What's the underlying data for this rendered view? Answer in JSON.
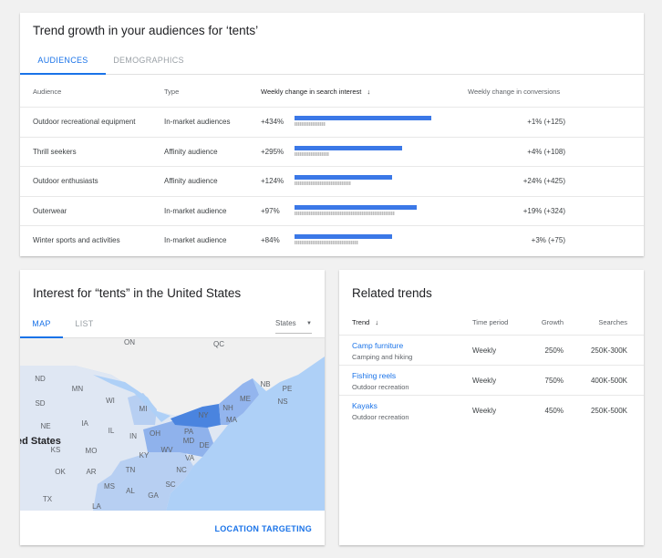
{
  "audiences_card": {
    "title": "Trend growth in your audiences for ‘tents’",
    "tabs": [
      "AUDIENCES",
      "DEMOGRAPHICS"
    ],
    "columns": [
      "Audience",
      "Type",
      "Weekly change in search interest",
      "Weekly change in conversions"
    ],
    "rows": [
      {
        "audience": "Outdoor recreational equipment",
        "type": "In-market audiences",
        "search_change": "+434%",
        "conversions": "+1% (+125)",
        "bar_pct": 94,
        "baseline_pct": 21
      },
      {
        "audience": "Thrill seekers",
        "type": "Affinity audience",
        "search_change": "+295%",
        "conversions": "+4% (+108)",
        "bar_pct": 74,
        "baseline_pct": 24
      },
      {
        "audience": "Outdoor enthusiasts",
        "type": "Affinity audience",
        "search_change": "+124%",
        "conversions": "+24% (+425)",
        "bar_pct": 67,
        "baseline_pct": 39
      },
      {
        "audience": "Outerwear",
        "type": "In-market audience",
        "search_change": "+97%",
        "conversions": "+19% (+324)",
        "bar_pct": 84,
        "baseline_pct": 69
      },
      {
        "audience": "Winter sports and activities",
        "type": "In-market audience",
        "search_change": "+84%",
        "conversions": "+3% (+75)",
        "bar_pct": 67,
        "baseline_pct": 44
      }
    ]
  },
  "interest_card": {
    "title": "Interest for “tents” in the United States",
    "tabs": [
      "MAP",
      "LIST"
    ],
    "dropdown": "States",
    "country_label": "ed States",
    "labels": [
      "ON",
      "QC",
      "ND",
      "MN",
      "SD",
      "WI",
      "MI",
      "NE",
      "IA",
      "IL",
      "IN",
      "OH",
      "PA",
      "MD",
      "NY",
      "NH",
      "ME",
      "MA",
      "NB",
      "PE",
      "NS",
      "KS",
      "MO",
      "KY",
      "WV",
      "DE",
      "VA",
      "TN",
      "NC",
      "OK",
      "AR",
      "MS",
      "AL",
      "SC",
      "GA",
      "TX",
      "LA"
    ],
    "action": "LOCATION TARGETING"
  },
  "related_card": {
    "title": "Related trends",
    "columns": [
      "Trend",
      "Time period",
      "Growth",
      "Searches"
    ],
    "rows": [
      {
        "trend": "Camp furniture",
        "category": "Camping and hiking",
        "period": "Weekly",
        "growth": "250%",
        "searches": "250K-300K"
      },
      {
        "trend": "Fishing reels",
        "category": "Outdoor recreation",
        "period": "Weekly",
        "growth": "750%",
        "searches": "400K-500K"
      },
      {
        "trend": "Kayaks",
        "category": "Outdoor recreation",
        "period": "Weekly",
        "growth": "450%",
        "searches": "250K-500K"
      }
    ]
  }
}
